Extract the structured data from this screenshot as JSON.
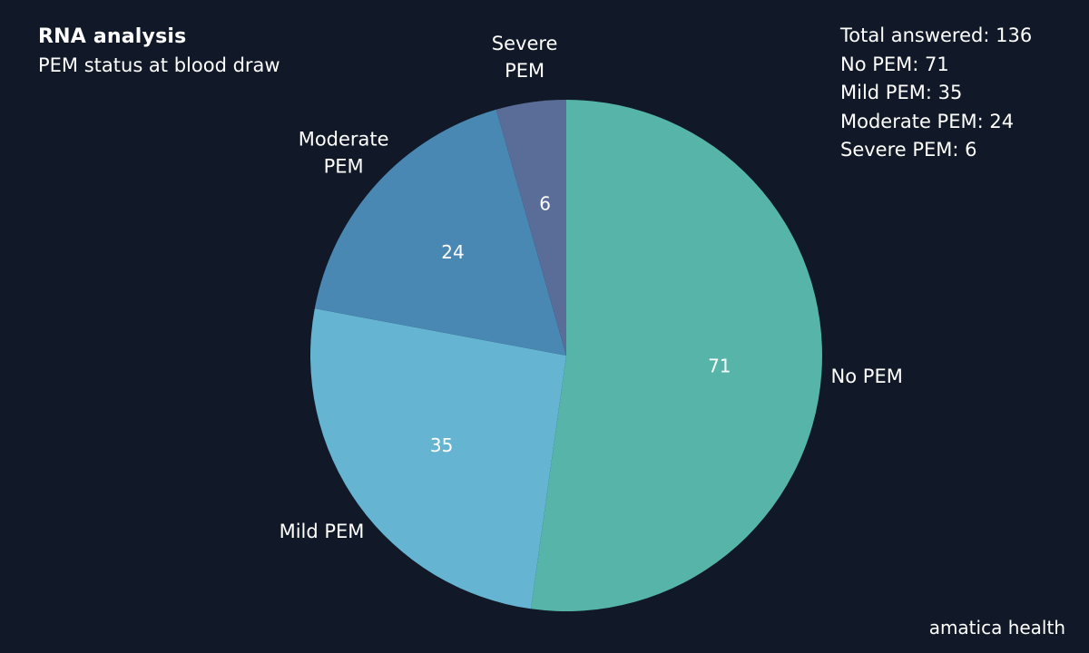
{
  "header": {
    "title": "RNA analysis",
    "subtitle": "PEM status at blood draw"
  },
  "summary": {
    "total": "Total answered: 136",
    "no_pem": "No PEM: 71",
    "mild": "Mild PEM: 35",
    "moderate": "Moderate PEM: 24",
    "severe": "Severe PEM: 6"
  },
  "footer": {
    "brand": "amatica health"
  },
  "chart_data": {
    "type": "pie",
    "title": "PEM status at blood draw",
    "slices": [
      {
        "label": "No PEM",
        "outer_label": [
          "No PEM"
        ],
        "value": 71,
        "color": "#56b4a8"
      },
      {
        "label": "Mild PEM",
        "outer_label": [
          "Mild PEM"
        ],
        "value": 35,
        "color": "#65b4d2"
      },
      {
        "label": "Moderate PEM",
        "outer_label": [
          "Moderate",
          "PEM"
        ],
        "value": 24,
        "color": "#4a88b4"
      },
      {
        "label": "Severe PEM",
        "outer_label": [
          "Severe",
          "PEM"
        ],
        "value": 6,
        "color": "#5a6c98"
      }
    ],
    "start_angle": "12 o'clock",
    "direction": "clockwise"
  }
}
